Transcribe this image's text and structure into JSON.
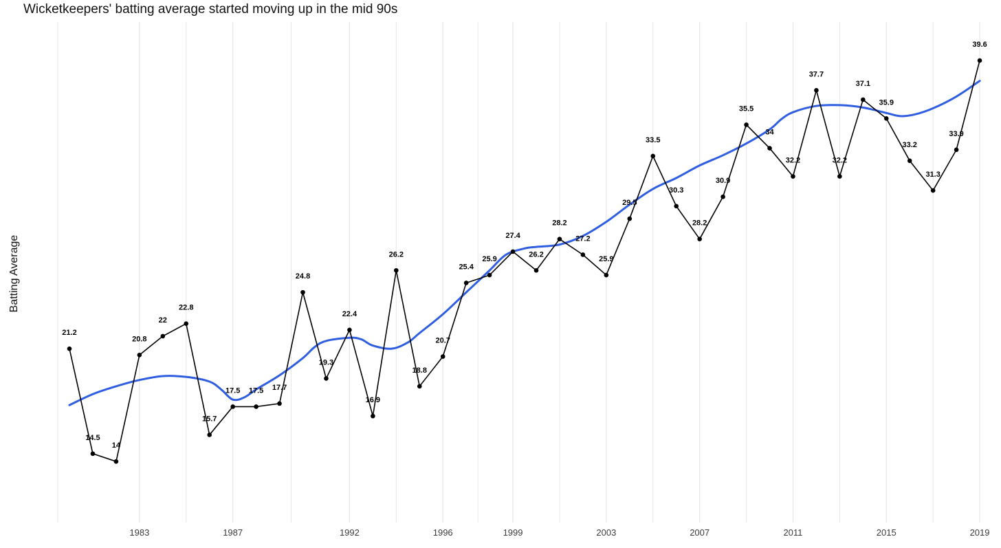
{
  "chart_data": {
    "type": "line",
    "title": "Wicketkeepers' batting average started moving up in the mid 90s",
    "xlabel": "",
    "ylabel": "Batting Average",
    "x_tick_labels": [
      "1983",
      "1987",
      "1992",
      "1996",
      "1999",
      "2003",
      "2007",
      "2011",
      "2015",
      "2019"
    ],
    "series": [
      {
        "name": "",
        "points": [
          {
            "x": 1980,
            "y": 21.2
          },
          {
            "x": 1981,
            "y": 14.5
          },
          {
            "x": 1982,
            "y": 14
          },
          {
            "x": 1983,
            "y": 20.8
          },
          {
            "x": 1984,
            "y": 22
          },
          {
            "x": 1985,
            "y": 22.8
          },
          {
            "x": 1986,
            "y": 15.7
          },
          {
            "x": 1987,
            "y": 17.5
          },
          {
            "x": 1988,
            "y": 17.5
          },
          {
            "x": 1989,
            "y": 17.7
          },
          {
            "x": 1990,
            "y": 24.8
          },
          {
            "x": 1991,
            "y": 19.3
          },
          {
            "x": 1992,
            "y": 22.4
          },
          {
            "x": 1993,
            "y": 16.9
          },
          {
            "x": 1994,
            "y": 26.2
          },
          {
            "x": 1995,
            "y": 18.8
          },
          {
            "x": 1996,
            "y": 20.7
          },
          {
            "x": 1997,
            "y": 25.4
          },
          {
            "x": 1998,
            "y": 25.9
          },
          {
            "x": 1999,
            "y": 27.4
          },
          {
            "x": 2000,
            "y": 26.2
          },
          {
            "x": 2001,
            "y": 28.2
          },
          {
            "x": 2002,
            "y": 27.2
          },
          {
            "x": 2003,
            "y": 25.9
          },
          {
            "x": 2004,
            "y": 29.5
          },
          {
            "x": 2005,
            "y": 33.5
          },
          {
            "x": 2006,
            "y": 30.3
          },
          {
            "x": 2007,
            "y": 28.2
          },
          {
            "x": 2008,
            "y": 30.9
          },
          {
            "x": 2009,
            "y": 35.5
          },
          {
            "x": 2010,
            "y": 34
          },
          {
            "x": 2011,
            "y": 32.2
          },
          {
            "x": 2012,
            "y": 37.7
          },
          {
            "x": 2013,
            "y": 32.2
          },
          {
            "x": 2014,
            "y": 37.1
          },
          {
            "x": 2015,
            "y": 35.9
          },
          {
            "x": 2016,
            "y": 33.2
          },
          {
            "x": 2017,
            "y": 31.3
          },
          {
            "x": 2018,
            "y": 33.9
          },
          {
            "x": 2019,
            "y": 39.6
          }
        ]
      }
    ],
    "trend_line": {
      "type": "smoothed",
      "color": "#2f5fe0",
      "points": [
        {
          "x": 1980,
          "y": 17.6
        },
        {
          "x": 1981,
          "y": 18.3
        },
        {
          "x": 1982,
          "y": 18.8
        },
        {
          "x": 1983,
          "y": 19.2
        },
        {
          "x": 1984,
          "y": 19.45
        },
        {
          "x": 1985,
          "y": 19.4
        },
        {
          "x": 1986,
          "y": 19.1
        },
        {
          "x": 1986.5,
          "y": 18.6
        },
        {
          "x": 1987,
          "y": 17.95
        },
        {
          "x": 1987.5,
          "y": 18.1
        },
        {
          "x": 1988,
          "y": 18.6
        },
        {
          "x": 1989,
          "y": 19.5
        },
        {
          "x": 1990,
          "y": 20.6
        },
        {
          "x": 1990.5,
          "y": 21.3
        },
        {
          "x": 1991,
          "y": 21.7
        },
        {
          "x": 1992,
          "y": 21.9
        },
        {
          "x": 1992.5,
          "y": 21.8
        },
        {
          "x": 1993,
          "y": 21.4
        },
        {
          "x": 1993.8,
          "y": 21.2
        },
        {
          "x": 1994.5,
          "y": 21.6
        },
        {
          "x": 1995,
          "y": 22.2
        },
        {
          "x": 1996,
          "y": 23.4
        },
        {
          "x": 1997,
          "y": 24.8
        },
        {
          "x": 1998,
          "y": 26.2
        },
        {
          "x": 1998.7,
          "y": 27.2
        },
        {
          "x": 1999.5,
          "y": 27.6
        },
        {
          "x": 2000,
          "y": 27.7
        },
        {
          "x": 2001,
          "y": 27.85
        },
        {
          "x": 2002,
          "y": 28.4
        },
        {
          "x": 2003,
          "y": 29.3
        },
        {
          "x": 2004,
          "y": 30.4
        },
        {
          "x": 2005,
          "y": 31.4
        },
        {
          "x": 2006,
          "y": 32.1
        },
        {
          "x": 2007,
          "y": 32.9
        },
        {
          "x": 2008,
          "y": 33.55
        },
        {
          "x": 2009,
          "y": 34.3
        },
        {
          "x": 2010,
          "y": 35.2
        },
        {
          "x": 2010.5,
          "y": 35.85
        },
        {
          "x": 2011,
          "y": 36.3
        },
        {
          "x": 2012,
          "y": 36.7
        },
        {
          "x": 2013,
          "y": 36.75
        },
        {
          "x": 2014,
          "y": 36.6
        },
        {
          "x": 2015,
          "y": 36.25
        },
        {
          "x": 2015.6,
          "y": 36.05
        },
        {
          "x": 2016.2,
          "y": 36.15
        },
        {
          "x": 2017,
          "y": 36.55
        },
        {
          "x": 2018,
          "y": 37.3
        },
        {
          "x": 2019,
          "y": 38.3
        }
      ]
    },
    "xlim": [
      1979,
      2019.4
    ],
    "ylim": [
      12.8,
      40.8
    ],
    "grid": {
      "vertical": true,
      "horizontal": false
    },
    "colors": {
      "series_line": "#000000",
      "trend": "#2f5fe0",
      "grid": "#e6e6e6",
      "tick_text": "#3a3a3a"
    }
  }
}
